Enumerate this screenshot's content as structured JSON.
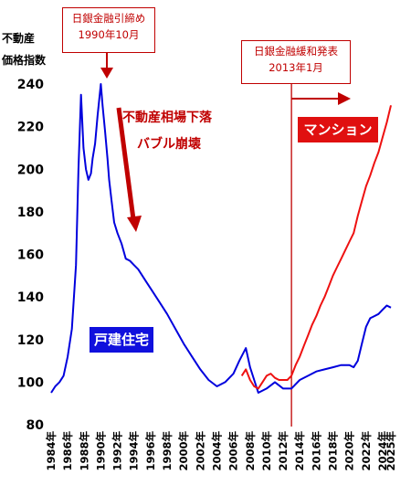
{
  "y_axis_title_line1": "不動産",
  "y_axis_title_line2": "価格指数",
  "annotations": {
    "boj_tightening_line1": "日銀金融引締め",
    "boj_tightening_line2": "1990年10月",
    "boj_easing_line1": "日銀金融緩和発表",
    "boj_easing_line2": "2013年1月",
    "downturn_line1": "不動産相場下落",
    "downturn_line2": "バブル崩壊"
  },
  "series_labels": {
    "mansion": "マンション",
    "house": "戸建住宅"
  },
  "colors": {
    "house": "#0000dd",
    "mansion": "#ee1111",
    "annotation": "#c00000",
    "badge_red": "#e01010",
    "badge_blue": "#1010dd"
  },
  "chart_data": {
    "type": "line",
    "ylim": [
      80,
      240
    ],
    "yticks": [
      80,
      100,
      120,
      140,
      160,
      180,
      200,
      220,
      240
    ],
    "xlim": [
      1984,
      2025
    ],
    "xticks": [
      "1984年",
      "1986年",
      "1988年",
      "1990年",
      "1992年",
      "1994年",
      "1996年",
      "1998年",
      "2000年",
      "2002年",
      "2004年",
      "2006年",
      "2008年",
      "2010年",
      "2012年",
      "2014年",
      "2016年",
      "2018年",
      "2020年",
      "2022年",
      "2024年",
      "2025年"
    ],
    "xtick_values": [
      1984,
      1986,
      1988,
      1990,
      1992,
      1994,
      1996,
      1998,
      2000,
      2002,
      2004,
      2006,
      2008,
      2010,
      2012,
      2014,
      2016,
      2018,
      2020,
      2022,
      2024,
      2025
    ],
    "vline": 2013.0,
    "series": [
      {
        "name": "戸建住宅",
        "key": "house",
        "x": [
          1984.0,
          1984.5,
          1985.0,
          1985.5,
          1986.0,
          1986.5,
          1987.0,
          1987.3,
          1987.6,
          1987.9,
          1988.2,
          1988.5,
          1988.8,
          1989.0,
          1989.3,
          1989.6,
          1990.0,
          1990.2,
          1990.5,
          1990.8,
          1991.0,
          1991.3,
          1991.6,
          1992.0,
          1992.5,
          1993.0,
          1993.5,
          1994.0,
          1994.5,
          1995.0,
          1995.5,
          1996.0,
          1997.0,
          1998.0,
          1999.0,
          2000.0,
          2001.0,
          2002.0,
          2003.0,
          2004.0,
          2005.0,
          2006.0,
          2006.7,
          2007.5,
          2008.0,
          2008.5,
          2009.0,
          2010.0,
          2011.0,
          2012.0,
          2013.0,
          2014.0,
          2015.0,
          2016.0,
          2017.0,
          2018.0,
          2019.0,
          2020.0,
          2020.5,
          2021.0,
          2021.5,
          2022.0,
          2022.5,
          2023.0,
          2023.5,
          2024.0,
          2024.5,
          2025.0
        ],
        "y": [
          95,
          98,
          100,
          103,
          112,
          125,
          155,
          200,
          235,
          210,
          200,
          195,
          198,
          205,
          212,
          225,
          240,
          230,
          218,
          205,
          195,
          185,
          175,
          170,
          165,
          158,
          157,
          155,
          153,
          150,
          147,
          144,
          138,
          132,
          125,
          118,
          112,
          106,
          101,
          98,
          100,
          104,
          110,
          116,
          107,
          101,
          95,
          97,
          100,
          97,
          97,
          101,
          103,
          105,
          106,
          107,
          108,
          108,
          107,
          110,
          118,
          126,
          130,
          131,
          132,
          134,
          136,
          135
        ]
      },
      {
        "name": "マンション",
        "key": "mansion",
        "x": [
          2007.0,
          2007.5,
          2008.0,
          2008.5,
          2009.0,
          2009.5,
          2010.0,
          2010.5,
          2011.0,
          2011.5,
          2012.0,
          2012.5,
          2013.0,
          2013.5,
          2014.0,
          2014.5,
          2015.0,
          2015.5,
          2016.0,
          2016.5,
          2017.0,
          2017.5,
          2018.0,
          2018.5,
          2019.0,
          2019.5,
          2020.0,
          2020.5,
          2021.0,
          2021.5,
          2022.0,
          2022.5,
          2023.0,
          2023.5,
          2024.0,
          2024.5,
          2025.0
        ],
        "y": [
          103,
          106,
          101,
          98,
          97,
          100,
          103,
          104,
          102,
          101,
          101,
          101,
          103,
          108,
          112,
          117,
          122,
          127,
          131,
          136,
          140,
          145,
          150,
          154,
          158,
          162,
          166,
          170,
          178,
          185,
          192,
          197,
          203,
          208,
          215,
          222,
          230
        ]
      }
    ]
  }
}
